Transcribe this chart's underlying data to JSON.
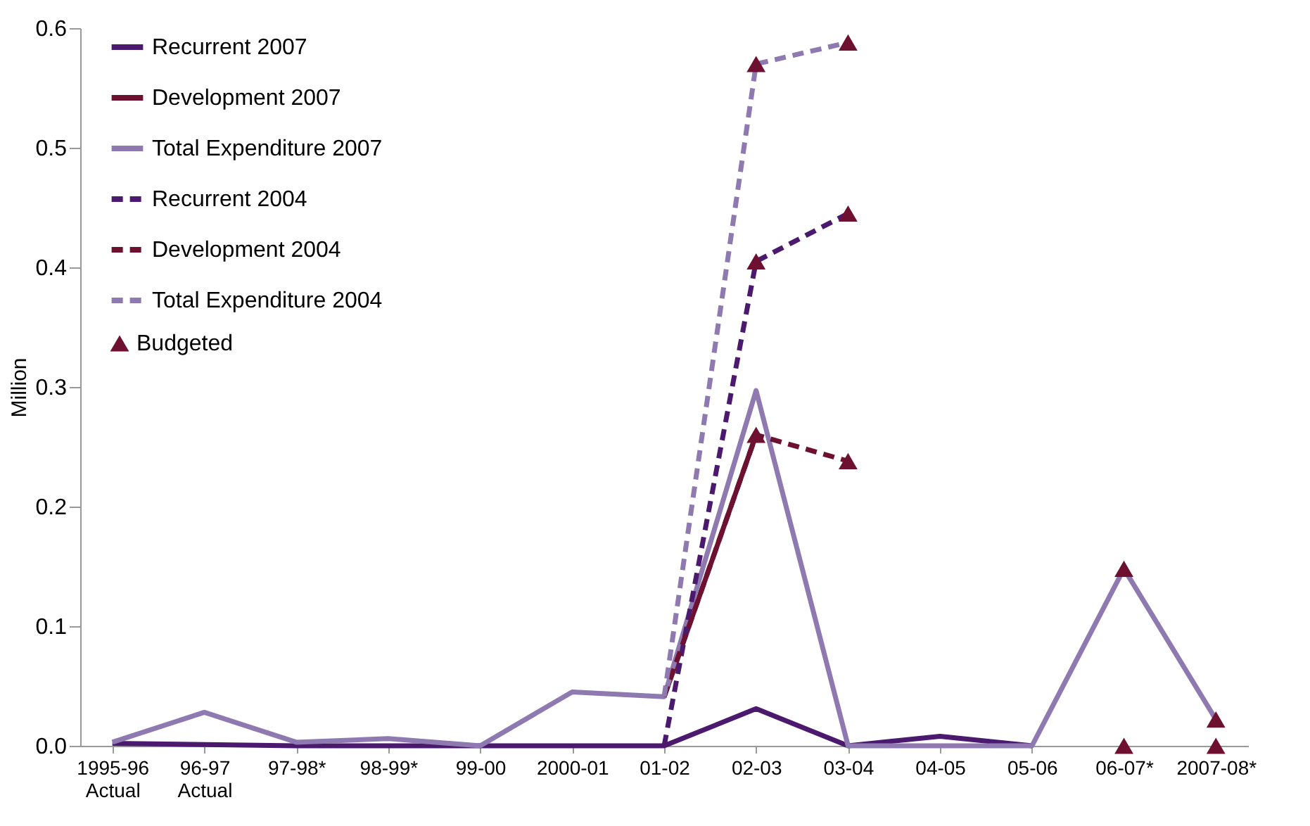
{
  "chart_data": {
    "type": "line",
    "ylabel": "Million",
    "categories": [
      "1995-96\nActual",
      "96-97\nActual",
      "97-98*",
      "98-99*",
      "99-00",
      "2000-01",
      "01-02",
      "02-03",
      "03-04",
      "04-05",
      "05-06",
      "06-07*",
      "2007-08*"
    ],
    "ylim": [
      0,
      0.6
    ],
    "yticks": [
      {
        "value": 0,
        "label": "0.0"
      },
      0.1,
      0.2,
      0.3,
      0.4,
      0.5,
      0.6
    ],
    "grid": false,
    "legend": "top left",
    "marker": "none",
    "series": [
      {
        "name": "Recurrent 2007",
        "color": "#4b1a6e",
        "line_style": "solid",
        "values": [
          0.002,
          0.001,
          0,
          0,
          0,
          0,
          0,
          0.031,
          0,
          0.008,
          0,
          null,
          null
        ]
      },
      {
        "name": "Development 2007",
        "color": "#6e1030",
        "line_style": "solid",
        "values": [
          null,
          null,
          null,
          null,
          null,
          null,
          0.041,
          0.26,
          null,
          null,
          null,
          null,
          null
        ]
      },
      {
        "name": "Total Expenditure 2007",
        "color": "#8e79b0",
        "line_style": "solid",
        "values": [
          0.003,
          0.028,
          0.003,
          0.006,
          0,
          0.045,
          0.041,
          0.297,
          0,
          0,
          0,
          0.148,
          0.022
        ]
      },
      {
        "name": "Recurrent 2004",
        "color": "#4b1a6e",
        "line_style": "dashed",
        "values": [
          null,
          null,
          null,
          null,
          null,
          null,
          0,
          0.405,
          0.445,
          null,
          null,
          null,
          null
        ]
      },
      {
        "name": "Development 2004",
        "color": "#6e1030",
        "line_style": "dashed",
        "values": [
          null,
          null,
          null,
          null,
          null,
          null,
          0.041,
          0.26,
          0.238,
          null,
          null,
          null,
          null
        ]
      },
      {
        "name": "Total Expenditure 2004",
        "color": "#8e79b0",
        "line_style": "dashed",
        "values": [
          null,
          null,
          null,
          null,
          null,
          null,
          0.041,
          0.57,
          0.588,
          null,
          null,
          null,
          null
        ]
      },
      {
        "name": "Budgeted",
        "type": "scatter",
        "marker": "triangle",
        "color": "#6e1030",
        "x": [
          "02-03",
          "03-04",
          "02-03",
          "03-04",
          "02-03",
          "03-04",
          "06-07*",
          "2007-08*",
          "06-07*",
          "2007-08*"
        ],
        "values": [
          0.57,
          0.588,
          0.405,
          0.445,
          0.26,
          0.238,
          0.148,
          0.022,
          0,
          0
        ]
      }
    ]
  }
}
